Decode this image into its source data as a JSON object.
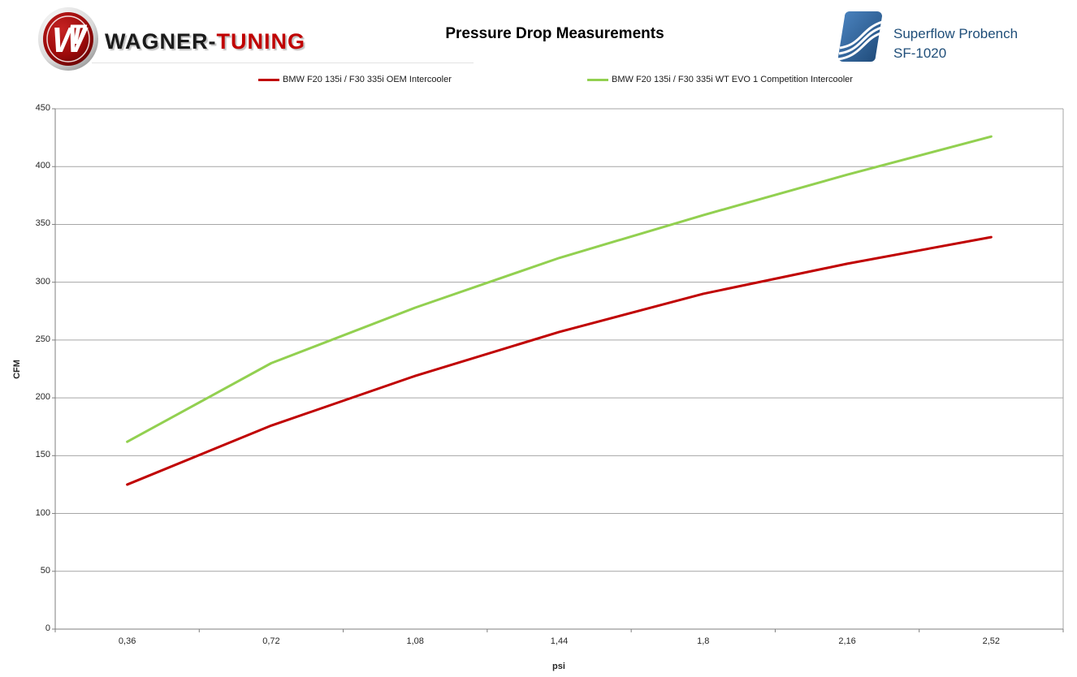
{
  "header": {
    "brand": {
      "monogram": "WT",
      "name_black": "WAGNER-",
      "name_red": "TUNING"
    },
    "title": "Pressure Drop Measurements",
    "bench": {
      "line1": "Superflow Probench",
      "line2": "SF-1020"
    }
  },
  "legend": [
    {
      "label": "BMW F20 135i / F30 335i OEM Intercooler",
      "color": "#c00000"
    },
    {
      "label": "BMW F20 135i / F30 335i WT EVO 1 Competition Intercooler",
      "color": "#92d050"
    }
  ],
  "chart_data": {
    "type": "line",
    "title": "Pressure Drop Measurements",
    "xlabel": "psi",
    "ylabel": "CFM",
    "categories": [
      "0,36",
      "0,72",
      "1,08",
      "1,44",
      "1,8",
      "2,16",
      "2,52"
    ],
    "x_values_psi": [
      0.36,
      0.72,
      1.08,
      1.44,
      1.8,
      2.16,
      2.52
    ],
    "y_ticks": [
      0,
      50,
      100,
      150,
      200,
      250,
      300,
      350,
      400,
      450
    ],
    "ylim": [
      0,
      450
    ],
    "grid": true,
    "legend_position": "top",
    "series": [
      {
        "name": "BMW F20 135i / F30 335i OEM Intercooler",
        "color": "#c00000",
        "values": [
          125,
          176,
          219,
          257,
          290,
          316,
          339
        ]
      },
      {
        "name": "BMW F20 135i / F30 335i WT EVO 1 Competition Intercooler",
        "color": "#92d050",
        "values": [
          162,
          230,
          278,
          321,
          358,
          393,
          426
        ]
      }
    ]
  },
  "colors": {
    "gridline": "#a6a6a6",
    "axis": "#7f7f7f",
    "tick_text": "#262626",
    "brand_red": "#c00000",
    "bench_blue": "#1f4e79"
  }
}
